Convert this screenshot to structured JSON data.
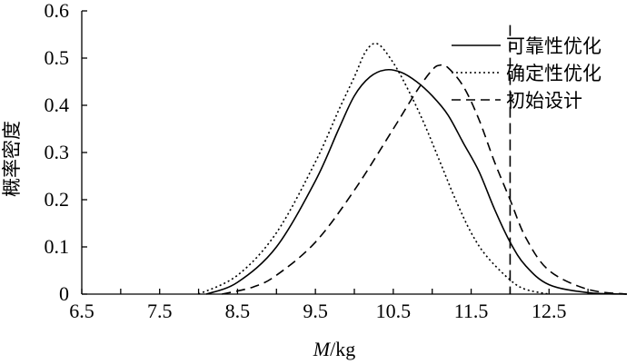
{
  "chart_data": {
    "type": "line",
    "xlabel_italic": "M",
    "xlabel_unit": "/kg",
    "ylabel": "概率密度",
    "xlim": [
      6.5,
      13.5
    ],
    "ylim": [
      0,
      0.6
    ],
    "xticks": [
      6.5,
      7.5,
      8.5,
      9.5,
      10.5,
      11.5,
      12.5
    ],
    "xtick_labels": [
      "6.5",
      "7.5",
      "8.5",
      "9.5",
      "10.5",
      "11.5",
      "12.5"
    ],
    "yticks": [
      0,
      0.1,
      0.2,
      0.3,
      0.4,
      0.5,
      0.6
    ],
    "ytick_labels": [
      "0",
      "0.1",
      "0.2",
      "0.3",
      "0.4",
      "0.5",
      "0.6"
    ],
    "constraint_line_x": 12.0,
    "legend_position": "top-right",
    "series": [
      {
        "name": "可靠性优化",
        "style": "solid",
        "x": [
          8.1,
          8.5,
          9.0,
          9.5,
          9.8,
          10.0,
          10.2,
          10.4,
          10.6,
          10.8,
          11.0,
          11.2,
          11.4,
          11.6,
          11.8,
          12.0,
          12.2,
          12.5,
          13.0,
          13.5
        ],
        "y": [
          0.0,
          0.025,
          0.1,
          0.24,
          0.35,
          0.42,
          0.46,
          0.475,
          0.47,
          0.45,
          0.42,
          0.38,
          0.32,
          0.26,
          0.18,
          0.11,
          0.06,
          0.02,
          0.003,
          0.0
        ]
      },
      {
        "name": "确定性优化",
        "style": "dotted",
        "x": [
          8.0,
          8.5,
          9.0,
          9.5,
          9.8,
          10.0,
          10.15,
          10.3,
          10.5,
          10.7,
          10.9,
          11.1,
          11.3,
          11.5,
          11.7,
          12.0,
          12.2,
          12.5
        ],
        "y": [
          0.0,
          0.04,
          0.13,
          0.28,
          0.39,
          0.46,
          0.515,
          0.53,
          0.49,
          0.43,
          0.36,
          0.28,
          0.2,
          0.13,
          0.08,
          0.03,
          0.01,
          0.0
        ]
      },
      {
        "name": "初始设计",
        "style": "dashed",
        "x": [
          8.3,
          8.7,
          9.0,
          9.5,
          10.0,
          10.5,
          10.8,
          11.0,
          11.1,
          11.2,
          11.4,
          11.6,
          11.8,
          12.0,
          12.2,
          12.5,
          13.0,
          13.5
        ],
        "y": [
          0.0,
          0.015,
          0.04,
          0.11,
          0.22,
          0.35,
          0.43,
          0.475,
          0.485,
          0.48,
          0.44,
          0.37,
          0.28,
          0.2,
          0.12,
          0.05,
          0.01,
          0.0
        ]
      }
    ]
  }
}
